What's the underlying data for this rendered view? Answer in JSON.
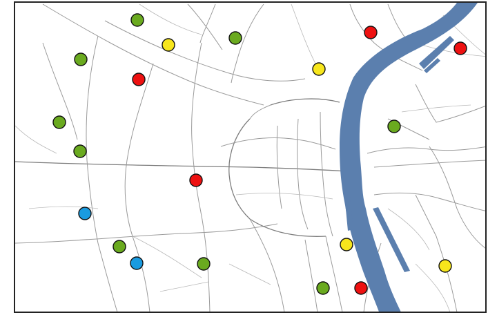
{
  "map": {
    "colors": {
      "water": "#5b7fae",
      "roads": "#9a9a9a",
      "background": "#ffffff",
      "border": "#222222"
    },
    "marker_colors": {
      "green": "#6aaa1f",
      "yellow": "#f7e61c",
      "red": "#ee1111",
      "blue": "#1a9be0"
    },
    "markers": [
      {
        "id": "m1",
        "color": "green"
      },
      {
        "id": "m2",
        "color": "yellow"
      },
      {
        "id": "m3",
        "color": "green"
      },
      {
        "id": "m4",
        "color": "red"
      },
      {
        "id": "m5",
        "color": "red"
      },
      {
        "id": "m6",
        "color": "green"
      },
      {
        "id": "m7",
        "color": "yellow"
      },
      {
        "id": "m8",
        "color": "red"
      },
      {
        "id": "m9",
        "color": "green"
      },
      {
        "id": "m10",
        "color": "green"
      },
      {
        "id": "m11",
        "color": "green"
      },
      {
        "id": "m12",
        "color": "red"
      },
      {
        "id": "m13",
        "color": "blue"
      },
      {
        "id": "m14",
        "color": "green"
      },
      {
        "id": "m15",
        "color": "blue"
      },
      {
        "id": "m16",
        "color": "green"
      },
      {
        "id": "m17",
        "color": "yellow"
      },
      {
        "id": "m18",
        "color": "yellow"
      },
      {
        "id": "m19",
        "color": "green"
      },
      {
        "id": "m20",
        "color": "red"
      }
    ]
  }
}
